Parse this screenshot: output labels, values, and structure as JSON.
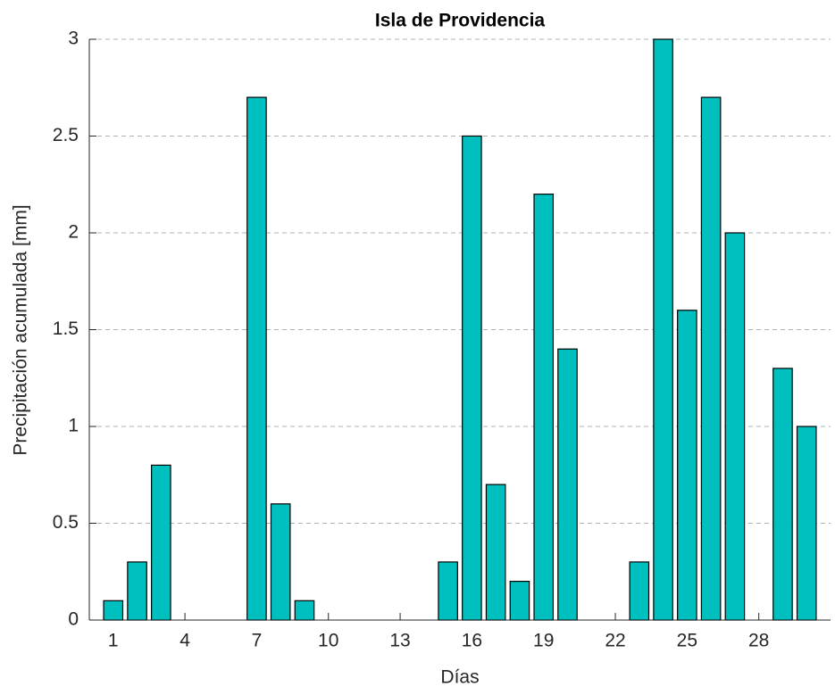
{
  "chart_data": {
    "type": "bar",
    "title": "Isla de Providencia",
    "x_label": "Días",
    "y_label": "Precipitación acumulada [mm]",
    "x": [
      1,
      2,
      3,
      4,
      5,
      6,
      7,
      8,
      9,
      10,
      11,
      12,
      13,
      14,
      15,
      16,
      17,
      18,
      19,
      20,
      21,
      22,
      23,
      24,
      25,
      26,
      27,
      28,
      29,
      30
    ],
    "values": [
      0.1,
      0.3,
      0.8,
      0,
      0,
      0,
      2.7,
      0.6,
      0.1,
      0,
      0,
      0,
      0,
      0,
      0.3,
      2.5,
      0.7,
      0.2,
      2.2,
      1.4,
      0,
      0,
      0.3,
      3.0,
      1.6,
      2.7,
      2.0,
      0,
      1.3,
      1.0
    ],
    "color": "#00bfbf",
    "xlim": [
      0,
      31
    ],
    "xticks": [
      1,
      4,
      7,
      10,
      13,
      16,
      19,
      22,
      25,
      28
    ],
    "ylim": [
      0,
      3
    ],
    "yticks": [
      0,
      0.5,
      1,
      1.5,
      2,
      2.5,
      3
    ],
    "grid": true
  }
}
